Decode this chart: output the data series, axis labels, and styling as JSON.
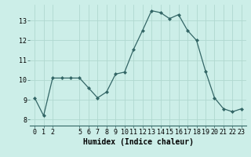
{
  "x": [
    0,
    1,
    2,
    3,
    4,
    5,
    6,
    7,
    8,
    9,
    10,
    11,
    12,
    13,
    14,
    15,
    16,
    17,
    18,
    19,
    20,
    21,
    22,
    23
  ],
  "y": [
    9.1,
    8.2,
    10.1,
    10.1,
    10.1,
    10.1,
    9.6,
    9.1,
    9.4,
    10.3,
    10.4,
    11.55,
    12.5,
    13.5,
    13.4,
    13.1,
    13.3,
    12.5,
    12.0,
    10.45,
    9.1,
    8.55,
    8.4,
    8.55
  ],
  "line_color": "#336666",
  "marker_color": "#336666",
  "bg_color": "#cceee8",
  "grid_color": "#b0d8d0",
  "xlabel": "Humidex (Indice chaleur)",
  "ylim": [
    7.7,
    13.8
  ],
  "xlim": [
    -0.5,
    23.5
  ],
  "yticks": [
    8,
    9,
    10,
    11,
    12,
    13
  ],
  "xticks": [
    0,
    1,
    2,
    5,
    6,
    7,
    8,
    9,
    10,
    11,
    12,
    13,
    14,
    15,
    16,
    17,
    18,
    19,
    20,
    21,
    22,
    23
  ],
  "label_fontsize": 7,
  "tick_fontsize": 6
}
